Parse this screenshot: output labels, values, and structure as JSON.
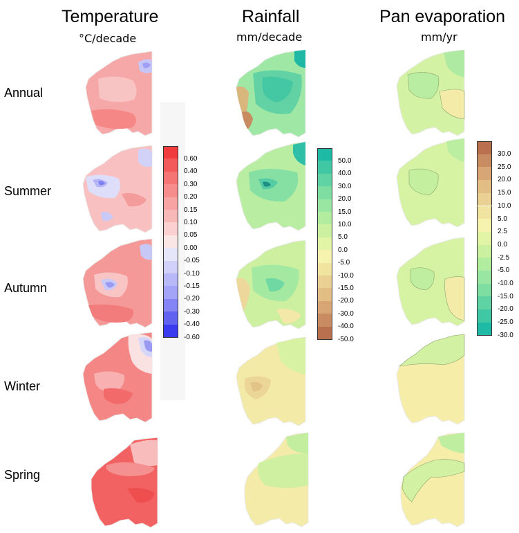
{
  "columns": [
    {
      "title": "Temperature",
      "unit": "°C/decade"
    },
    {
      "title": "Rainfall",
      "unit": "mm/decade"
    },
    {
      "title": "Pan evaporation",
      "unit": "mm/yr"
    }
  ],
  "seasons": [
    "Annual",
    "Summer",
    "Autumn",
    "Winter",
    "Spring"
  ],
  "legends": {
    "temperature": {
      "labels": [
        "0.60",
        "0.40",
        "0.30",
        "0.20",
        "0.15",
        "0.10",
        "0.05",
        "0.00",
        "-0.05",
        "-0.10",
        "-0.15",
        "-0.20",
        "-0.30",
        "-0.40",
        "-0.60"
      ],
      "colors": [
        "#f03c3c",
        "#f35a5a",
        "#f57575",
        "#f68c8c",
        "#f7a3a3",
        "#f8b8b8",
        "#fad0d0",
        "#fbe6e6",
        "#e6e6fb",
        "#d0d0fa",
        "#b8b8f8",
        "#a3a3f7",
        "#8484f4",
        "#6262f0",
        "#3a3aee"
      ]
    },
    "rainfall": {
      "labels": [
        "50.0",
        "40.0",
        "30.0",
        "20.0",
        "15.0",
        "10.0",
        "5.0",
        "0.0",
        "-5.0",
        "-10.0",
        "-15.0",
        "-20.0",
        "-30.0",
        "-40.0",
        "-50.0"
      ],
      "colors": [
        "#1fbaa6",
        "#3fc8a3",
        "#5fd3a3",
        "#7edea2",
        "#99e6a3",
        "#b2ec9f",
        "#cbf0a0",
        "#e2f4a6",
        "#f6f3ae",
        "#f1e3a0",
        "#ead193",
        "#e2bd84",
        "#d8a574",
        "#c98b61",
        "#b8704e"
      ]
    },
    "evaporation": {
      "labels": [
        "30.0",
        "25.0",
        "20.0",
        "15.0",
        "10.0",
        "5.0",
        "2.5",
        "0.0",
        "-2.5",
        "-5.0",
        "-10.0",
        "-15.0",
        "-20.0",
        "-25.0",
        "-30.0"
      ],
      "colors": [
        "#b8704e",
        "#c98b61",
        "#d8a574",
        "#e2bd84",
        "#ead193",
        "#f1e3a0",
        "#f6f3ae",
        "#e2f4a6",
        "#cbf0a0",
        "#b2ec9f",
        "#99e6a3",
        "#7edea2",
        "#5fd3a3",
        "#3fc8a3",
        "#1fbaa6"
      ]
    }
  }
}
